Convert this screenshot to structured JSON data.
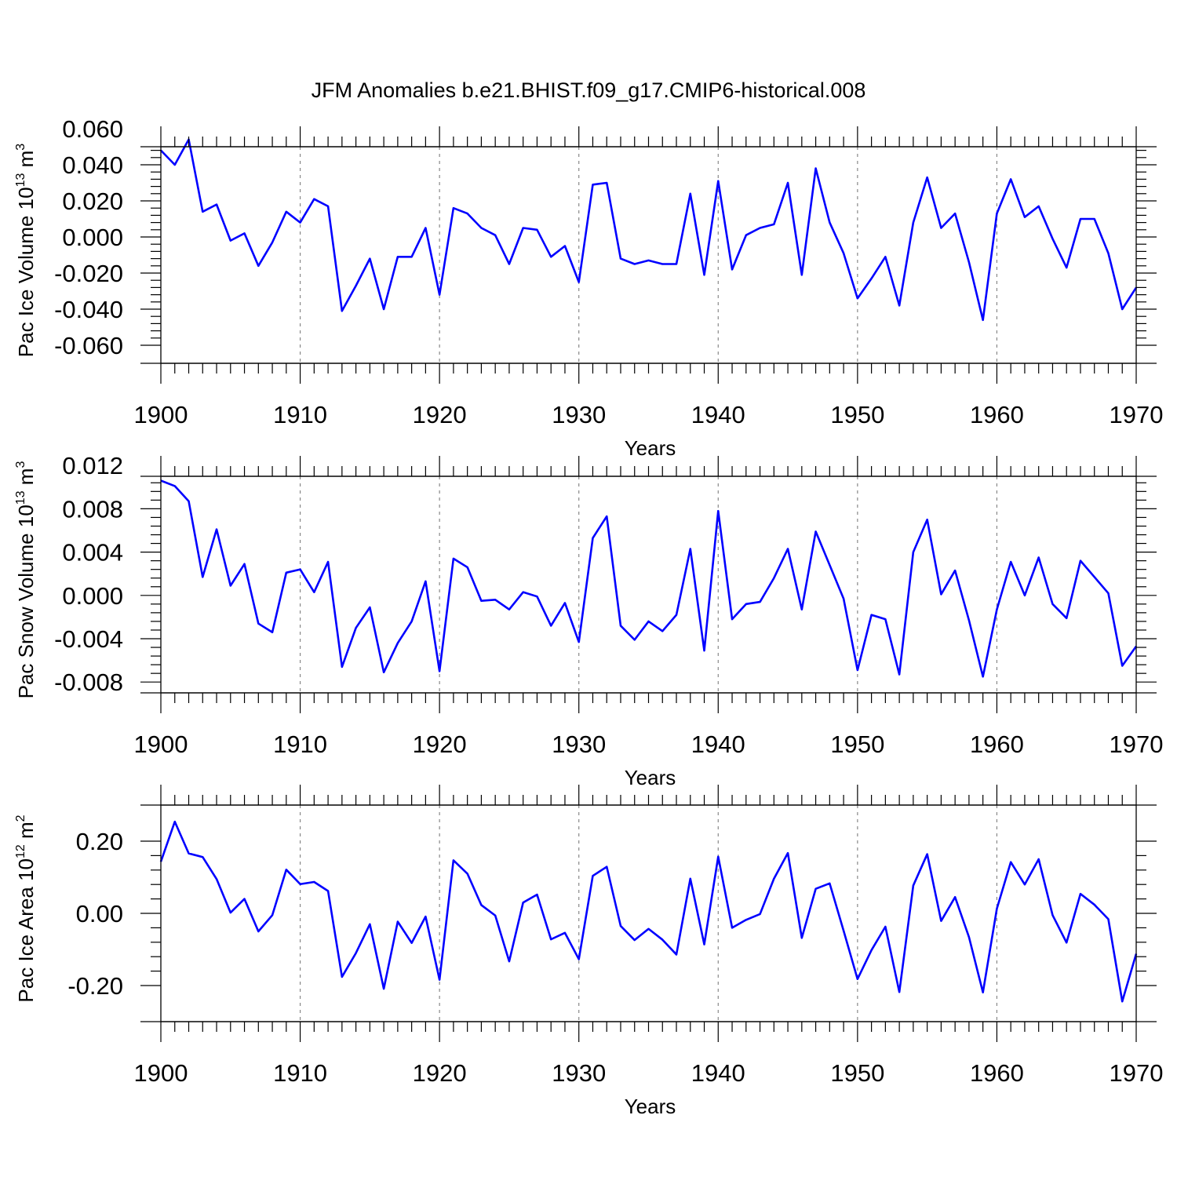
{
  "title": "JFM Anomalies b.e21.BHIST.f09_g17.CMIP6-historical.008",
  "line_color": "#0000ff",
  "chart_data": [
    {
      "type": "line",
      "ylabel_main": "Pac Ice Volume 10",
      "ylabel_sup": "13",
      "ylabel_unit": " m",
      "ylabel_unit_sup": "3",
      "xlabel": "Years",
      "xlim": [
        1900,
        1970
      ],
      "ylim": [
        -0.07,
        0.05
      ],
      "yticks": [
        -0.06,
        -0.04,
        -0.02,
        0.0,
        0.02,
        0.04,
        0.06
      ],
      "ytick_labels": [
        "-0.060",
        "-0.040",
        "-0.020",
        "0.000",
        "0.020",
        "0.040",
        "0.060"
      ],
      "xticks": [
        1900,
        1910,
        1920,
        1930,
        1940,
        1950,
        1960,
        1970
      ],
      "xtick_labels": [
        "1900",
        "1910",
        "1920",
        "1930",
        "1940",
        "1950",
        "1960",
        "1970"
      ],
      "series": [
        {
          "name": "Pac Ice Volume",
          "x_start": 1900,
          "values": [
            0.048,
            0.04,
            0.054,
            0.014,
            0.018,
            -0.002,
            0.002,
            -0.016,
            -0.003,
            0.014,
            0.008,
            0.021,
            0.017,
            -0.041,
            -0.027,
            -0.012,
            -0.04,
            -0.011,
            -0.011,
            0.005,
            -0.032,
            0.016,
            0.013,
            0.005,
            0.001,
            -0.015,
            0.005,
            0.004,
            -0.011,
            -0.005,
            -0.025,
            0.029,
            0.03,
            -0.012,
            -0.015,
            -0.013,
            -0.015,
            -0.015,
            0.024,
            -0.021,
            0.031,
            -0.018,
            0.001,
            0.005,
            0.007,
            0.03,
            -0.021,
            0.038,
            0.008,
            -0.009,
            -0.034,
            -0.023,
            -0.011,
            -0.038,
            0.008,
            0.033,
            0.005,
            0.013,
            -0.014,
            -0.046,
            0.013,
            0.032,
            0.011,
            0.017,
            -0.001,
            -0.017,
            0.01,
            0.01,
            -0.009,
            -0.04,
            -0.028
          ]
        }
      ]
    },
    {
      "type": "line",
      "ylabel_main": "Pac Snow Volume 10",
      "ylabel_sup": "13",
      "ylabel_unit": " m",
      "ylabel_unit_sup": "3",
      "xlabel": "Years",
      "xlim": [
        1900,
        1970
      ],
      "ylim": [
        -0.009,
        0.011
      ],
      "yticks": [
        -0.008,
        -0.004,
        0.0,
        0.004,
        0.008,
        0.012
      ],
      "ytick_labels": [
        "-0.008",
        "-0.004",
        "0.000",
        "0.004",
        "0.008",
        "0.012"
      ],
      "xticks": [
        1900,
        1910,
        1920,
        1930,
        1940,
        1950,
        1960,
        1970
      ],
      "xtick_labels": [
        "1900",
        "1910",
        "1920",
        "1930",
        "1940",
        "1950",
        "1960",
        "1970"
      ],
      "series": [
        {
          "name": "Pac Snow Volume",
          "x_start": 1900,
          "values": [
            0.0106,
            0.0101,
            0.0087,
            0.0017,
            0.0061,
            0.0009,
            0.0029,
            -0.0026,
            -0.0034,
            0.0021,
            0.0024,
            0.0003,
            0.0031,
            -0.0066,
            -0.003,
            -0.0011,
            -0.0071,
            -0.0044,
            -0.0024,
            0.0013,
            -0.007,
            0.0034,
            0.0026,
            -0.0005,
            -0.0004,
            -0.0013,
            0.0003,
            -0.0001,
            -0.0028,
            -0.0007,
            -0.0043,
            0.0053,
            0.0073,
            -0.0028,
            -0.0041,
            -0.0024,
            -0.0033,
            -0.0018,
            0.0043,
            -0.0051,
            0.0078,
            -0.0022,
            -0.0008,
            -0.0006,
            0.0016,
            0.0043,
            -0.0013,
            0.0059,
            0.0028,
            -0.0003,
            -0.0069,
            -0.0018,
            -0.0022,
            -0.0073,
            0.004,
            0.007,
            0.0001,
            0.0023,
            -0.0023,
            -0.0075,
            -0.0013,
            0.0031,
            0.0,
            0.0035,
            -0.0008,
            -0.0021,
            0.0032,
            0.0017,
            0.0002,
            -0.0065,
            -0.0047
          ]
        }
      ]
    },
    {
      "type": "line",
      "ylabel_main": "Pac Ice Area 10",
      "ylabel_sup": "12",
      "ylabel_unit": " m",
      "ylabel_unit_sup": "2",
      "xlabel": "Years",
      "xlim": [
        1900,
        1970
      ],
      "ylim": [
        -0.3,
        0.3
      ],
      "yticks": [
        -0.2,
        0.0,
        0.2
      ],
      "ytick_labels": [
        "-0.20",
        "0.00",
        "0.20"
      ],
      "xticks": [
        1900,
        1910,
        1920,
        1930,
        1940,
        1950,
        1960,
        1970
      ],
      "xtick_labels": [
        "1900",
        "1910",
        "1920",
        "1930",
        "1940",
        "1950",
        "1960",
        "1970"
      ],
      "series": [
        {
          "name": "Pac Ice Area",
          "x_start": 1900,
          "values": [
            0.143,
            0.254,
            0.166,
            0.156,
            0.095,
            0.002,
            0.04,
            -0.05,
            -0.005,
            0.121,
            0.081,
            0.087,
            0.062,
            -0.176,
            -0.11,
            -0.03,
            -0.209,
            -0.023,
            -0.082,
            -0.009,
            -0.184,
            0.147,
            0.11,
            0.023,
            -0.006,
            -0.133,
            0.03,
            0.052,
            -0.072,
            -0.054,
            -0.127,
            0.104,
            0.129,
            -0.035,
            -0.074,
            -0.043,
            -0.073,
            -0.114,
            0.096,
            -0.086,
            0.157,
            -0.04,
            -0.018,
            -0.002,
            0.096,
            0.167,
            -0.068,
            0.068,
            0.083,
            -0.048,
            -0.182,
            -0.102,
            -0.037,
            -0.218,
            0.077,
            0.164,
            -0.021,
            0.045,
            -0.066,
            -0.219,
            0.013,
            0.142,
            0.08,
            0.15,
            -0.005,
            -0.081,
            0.054,
            0.024,
            -0.016,
            -0.244,
            -0.112
          ]
        }
      ]
    }
  ]
}
